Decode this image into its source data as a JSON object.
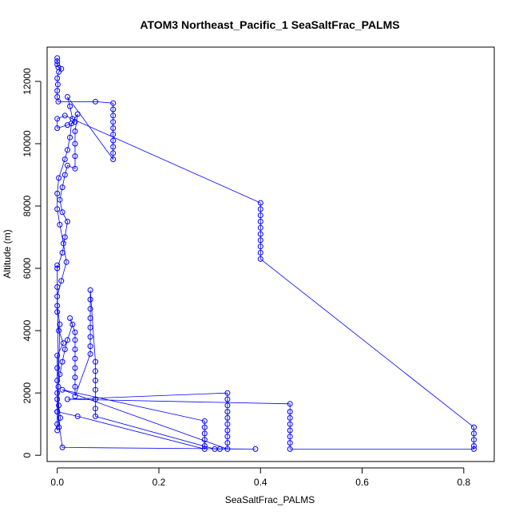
{
  "chart_data": {
    "type": "scatter",
    "title": "ATOM3 Northeast_Pacific_1 SeaSaltFrac_PALMS",
    "xlabel": "SeaSaltFrac_PALMS",
    "ylabel": "Altitude (m)",
    "xlim": [
      -0.02,
      0.86
    ],
    "ylim": [
      -200,
      13100
    ],
    "xticks": [
      0.0,
      0.2,
      0.4,
      0.6,
      0.8
    ],
    "xtick_labels": [
      "0.0",
      "0.2",
      "0.4",
      "0.6",
      "0.8"
    ],
    "yticks": [
      0,
      2000,
      4000,
      6000,
      8000,
      10000,
      12000
    ],
    "ytick_labels": [
      "0",
      "2000",
      "4000",
      "6000",
      "8000",
      "10000",
      "12000"
    ],
    "grid": false,
    "legend": "none",
    "series": [
      {
        "color": "#0000ff",
        "marker": "open-circle",
        "line": true,
        "points": [
          [
            0.0,
            12750
          ],
          [
            0.0,
            12650
          ],
          [
            0.0,
            12550
          ],
          [
            0.002,
            12450
          ],
          [
            0.008,
            12400
          ],
          [
            0.003,
            12300
          ],
          [
            0.0,
            12100
          ],
          [
            0.001,
            11900
          ],
          [
            0.0,
            11700
          ],
          [
            0.0,
            11500
          ],
          [
            0.002,
            11350
          ],
          [
            0.075,
            11350
          ],
          [
            0.11,
            11300
          ],
          [
            0.11,
            11100
          ],
          [
            0.11,
            10900
          ],
          [
            0.11,
            10700
          ],
          [
            0.11,
            10500
          ],
          [
            0.11,
            10300
          ],
          [
            0.11,
            10100
          ],
          [
            0.11,
            9900
          ],
          [
            0.11,
            9700
          ],
          [
            0.11,
            9500
          ],
          [
            0.02,
            11500
          ],
          [
            0.025,
            11200
          ],
          [
            0.03,
            10800
          ],
          [
            0.035,
            10700
          ],
          [
            0.02,
            10600
          ],
          [
            0.0,
            10500
          ],
          [
            0.0,
            10800
          ],
          [
            0.015,
            10900
          ],
          [
            0.4,
            8100
          ],
          [
            0.4,
            7900
          ],
          [
            0.4,
            7700
          ],
          [
            0.4,
            7500
          ],
          [
            0.4,
            7300
          ],
          [
            0.4,
            7100
          ],
          [
            0.4,
            6900
          ],
          [
            0.4,
            6700
          ],
          [
            0.4,
            6500
          ],
          [
            0.4,
            6300
          ],
          [
            0.82,
            900
          ],
          [
            0.82,
            700
          ],
          [
            0.82,
            500
          ],
          [
            0.82,
            300
          ],
          [
            0.82,
            200
          ],
          [
            0.458,
            200
          ],
          [
            0.458,
            400
          ],
          [
            0.458,
            600
          ],
          [
            0.458,
            800
          ],
          [
            0.458,
            1000
          ],
          [
            0.458,
            1200
          ],
          [
            0.458,
            1400
          ],
          [
            0.458,
            1650
          ],
          [
            0.02,
            1800
          ],
          [
            0.335,
            2000
          ],
          [
            0.335,
            1800
          ],
          [
            0.335,
            1600
          ],
          [
            0.335,
            1400
          ],
          [
            0.335,
            1200
          ],
          [
            0.335,
            1000
          ],
          [
            0.335,
            800
          ],
          [
            0.335,
            600
          ],
          [
            0.335,
            400
          ],
          [
            0.335,
            200
          ],
          [
            0.01,
            2100
          ],
          [
            0.29,
            1100
          ],
          [
            0.29,
            900
          ],
          [
            0.29,
            700
          ],
          [
            0.29,
            500
          ],
          [
            0.29,
            300
          ],
          [
            0.29,
            200
          ],
          [
            0.04,
            1250
          ],
          [
            0.0,
            1400
          ],
          [
            0.01,
            250
          ],
          [
            0.39,
            200
          ],
          [
            0.32,
            200
          ],
          [
            0.31,
            200
          ],
          [
            0.075,
            1250
          ],
          [
            0.075,
            1500
          ],
          [
            0.075,
            1800
          ],
          [
            0.075,
            2100
          ],
          [
            0.075,
            2400
          ],
          [
            0.075,
            2700
          ],
          [
            0.075,
            3000
          ],
          [
            0.065,
            5300
          ],
          [
            0.065,
            5000
          ],
          [
            0.065,
            4700
          ],
          [
            0.065,
            4400
          ],
          [
            0.065,
            4100
          ],
          [
            0.065,
            3800
          ],
          [
            0.065,
            3500
          ],
          [
            0.065,
            3250
          ],
          [
            0.035,
            1900
          ],
          [
            0.035,
            2200
          ],
          [
            0.035,
            2500
          ],
          [
            0.035,
            2800
          ],
          [
            0.035,
            3100
          ],
          [
            0.035,
            3400
          ],
          [
            0.035,
            3700
          ],
          [
            0.035,
            3950
          ],
          [
            0.025,
            4400
          ],
          [
            0.03,
            4200
          ],
          [
            0.02,
            3700
          ],
          [
            0.015,
            3400
          ],
          [
            0.01,
            3000
          ],
          [
            0.005,
            2600
          ],
          [
            0.002,
            2200
          ],
          [
            0.0,
            1800
          ],
          [
            0.0,
            1400
          ],
          [
            0.0,
            1000
          ],
          [
            0.0,
            800
          ],
          [
            0.005,
            4200
          ],
          [
            0.0,
            4800
          ],
          [
            0.0,
            5400
          ],
          [
            0.0,
            6000
          ],
          [
            0.01,
            6500
          ],
          [
            0.015,
            7000
          ],
          [
            0.02,
            7500
          ],
          [
            0.01,
            7800
          ],
          [
            0.005,
            8200
          ],
          [
            0.01,
            8600
          ],
          [
            0.015,
            9000
          ],
          [
            0.02,
            9300
          ],
          [
            0.035,
            9200
          ],
          [
            0.035,
            9600
          ],
          [
            0.035,
            10000
          ],
          [
            0.035,
            10400
          ],
          [
            0.04,
            10950
          ],
          [
            0.028,
            10650
          ],
          [
            0.025,
            10200
          ],
          [
            0.02,
            9800
          ],
          [
            0.015,
            9500
          ],
          [
            0.003,
            8900
          ],
          [
            0.0,
            8400
          ],
          [
            0.0,
            7900
          ],
          [
            0.005,
            7400
          ],
          [
            0.012,
            6800
          ],
          [
            0.018,
            6200
          ],
          [
            0.008,
            5600
          ],
          [
            0.0,
            5100
          ],
          [
            0.0,
            4600
          ],
          [
            0.003,
            4000
          ],
          [
            0.012,
            3600
          ],
          [
            0.0,
            3200
          ],
          [
            0.0,
            2800
          ],
          [
            0.0,
            2400
          ],
          [
            0.0,
            2000
          ],
          [
            0.003,
            1600
          ],
          [
            0.006,
            1200
          ],
          [
            0.003,
            900
          ],
          [
            0.0,
            6100
          ]
        ]
      }
    ]
  }
}
